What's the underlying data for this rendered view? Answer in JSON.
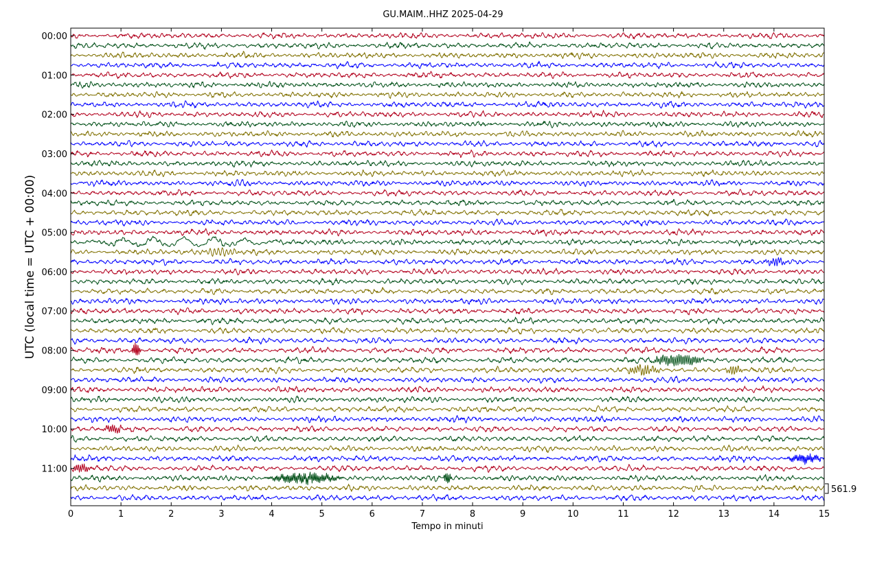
{
  "chart_data": {
    "type": "line",
    "title": "GU.MAIM..HHZ 2025-04-29",
    "xlabel": "Tempo in minuti",
    "ylabel": "UTC (local time = UTC + 00:00)",
    "xlim": [
      0,
      15
    ],
    "x_ticks": [
      "0",
      "1",
      "2",
      "3",
      "4",
      "5",
      "6",
      "7",
      "8",
      "9",
      "10",
      "11",
      "12",
      "13",
      "14",
      "15"
    ],
    "y_ticks": [
      "00:00",
      "01:00",
      "02:00",
      "03:00",
      "04:00",
      "05:00",
      "06:00",
      "07:00",
      "08:00",
      "09:00",
      "10:00",
      "11:00"
    ],
    "trace_minutes": 15,
    "trace_count": 48,
    "trace_colors": [
      "#b2001d",
      "#004f17",
      "#807000",
      "#0000ff"
    ],
    "scale_label": "561.9",
    "grid": false,
    "legend": "none",
    "events": [
      {
        "trace": 21,
        "from_min": 0.0,
        "to_min": 4.5,
        "amplitude": 2.0,
        "period_min": 0.6
      },
      {
        "trace": 22,
        "from_min": 2.5,
        "to_min": 3.5,
        "amplitude": 1.6,
        "period_min": 0.08
      },
      {
        "trace": 23,
        "from_min": 13.8,
        "to_min": 14.3,
        "amplitude": 1.6,
        "period_min": 0.05
      },
      {
        "trace": 32,
        "from_min": 1.2,
        "to_min": 1.4,
        "amplitude": 3.2,
        "period_min": 0.03
      },
      {
        "trace": 33,
        "from_min": 11.5,
        "to_min": 12.7,
        "amplitude": 2.4,
        "period_min": 0.04
      },
      {
        "trace": 34,
        "from_min": 11.0,
        "to_min": 11.8,
        "amplitude": 1.8,
        "period_min": 0.05
      },
      {
        "trace": 34,
        "from_min": 13.0,
        "to_min": 13.4,
        "amplitude": 1.8,
        "period_min": 0.05
      },
      {
        "trace": 40,
        "from_min": 0.6,
        "to_min": 1.1,
        "amplitude": 1.6,
        "period_min": 0.04
      },
      {
        "trace": 43,
        "from_min": 14.2,
        "to_min": 15.0,
        "amplitude": 1.8,
        "period_min": 0.03
      },
      {
        "trace": 44,
        "from_min": 0.0,
        "to_min": 0.4,
        "amplitude": 1.8,
        "period_min": 0.04
      },
      {
        "trace": 45,
        "from_min": 3.8,
        "to_min": 5.5,
        "amplitude": 2.0,
        "period_min": 0.03
      },
      {
        "trace": 45,
        "from_min": 7.4,
        "to_min": 7.6,
        "amplitude": 2.4,
        "period_min": 0.03
      }
    ]
  }
}
